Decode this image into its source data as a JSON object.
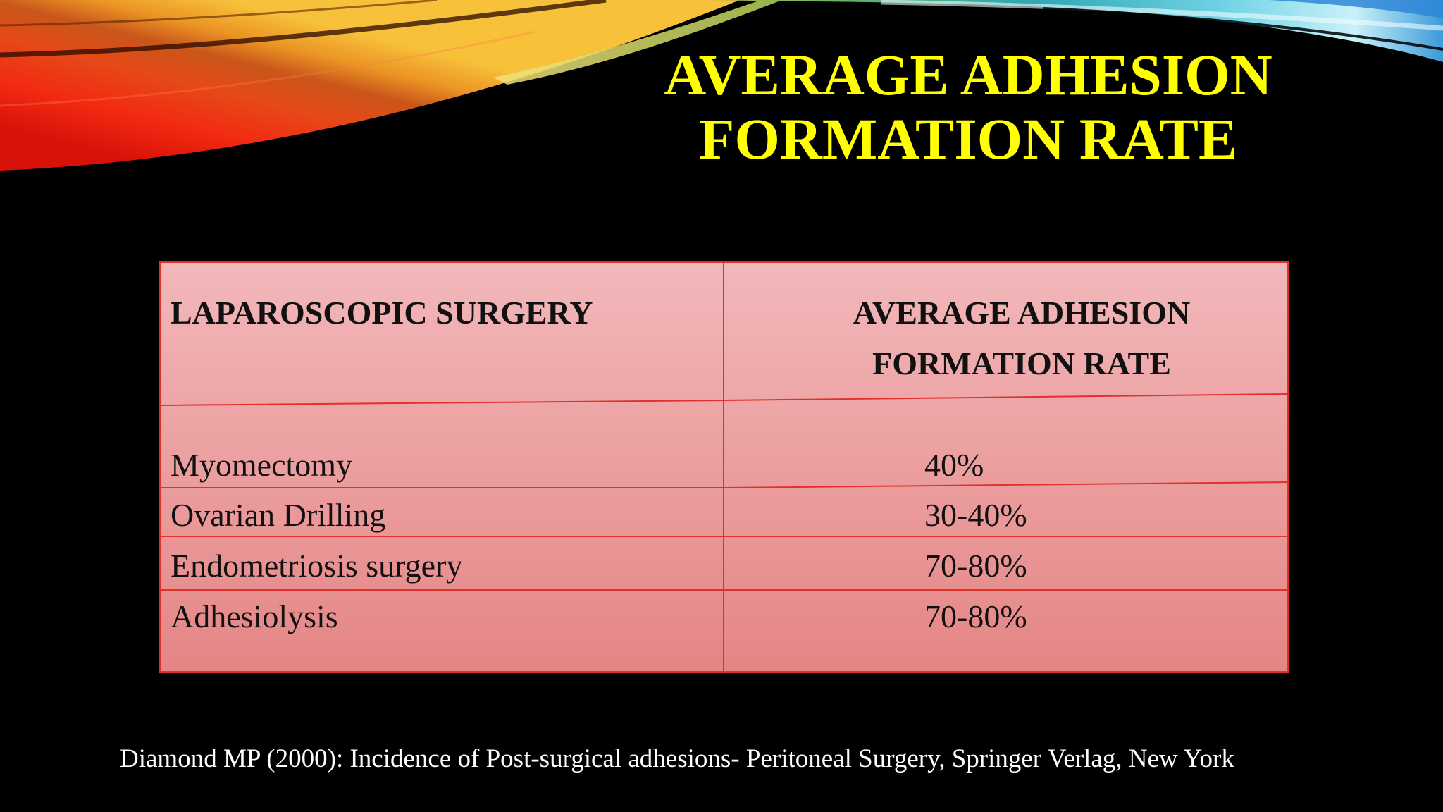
{
  "slide": {
    "title_lines": [
      "AVERAGE ADHESION",
      "FORMATION RATE"
    ],
    "title_color": "#FFFF00",
    "background_color": "#000000"
  },
  "table": {
    "headers": {
      "procedure": "LAPAROSCOPIC SURGERY",
      "rate_lines": [
        "AVERAGE ADHESION",
        "FORMATION RATE"
      ]
    },
    "rows": [
      {
        "procedure": "Myomectomy",
        "rate": "40%"
      },
      {
        "procedure": "Ovarian Drilling",
        "rate": "30-40%"
      },
      {
        "procedure": "Endometriosis surgery",
        "rate": "70-80%"
      },
      {
        "procedure": "Adhesiolysis",
        "rate": "70-80%"
      }
    ],
    "colors": {
      "border": "#E2312D",
      "fill_top": "#F2B8BA",
      "fill_bottom": "#E58585",
      "text": "#111111"
    }
  },
  "citation": "Diamond MP (2000): Incidence of Post-surgical adhesions- Peritoneal Surgery, Springer Verlag, New York"
}
